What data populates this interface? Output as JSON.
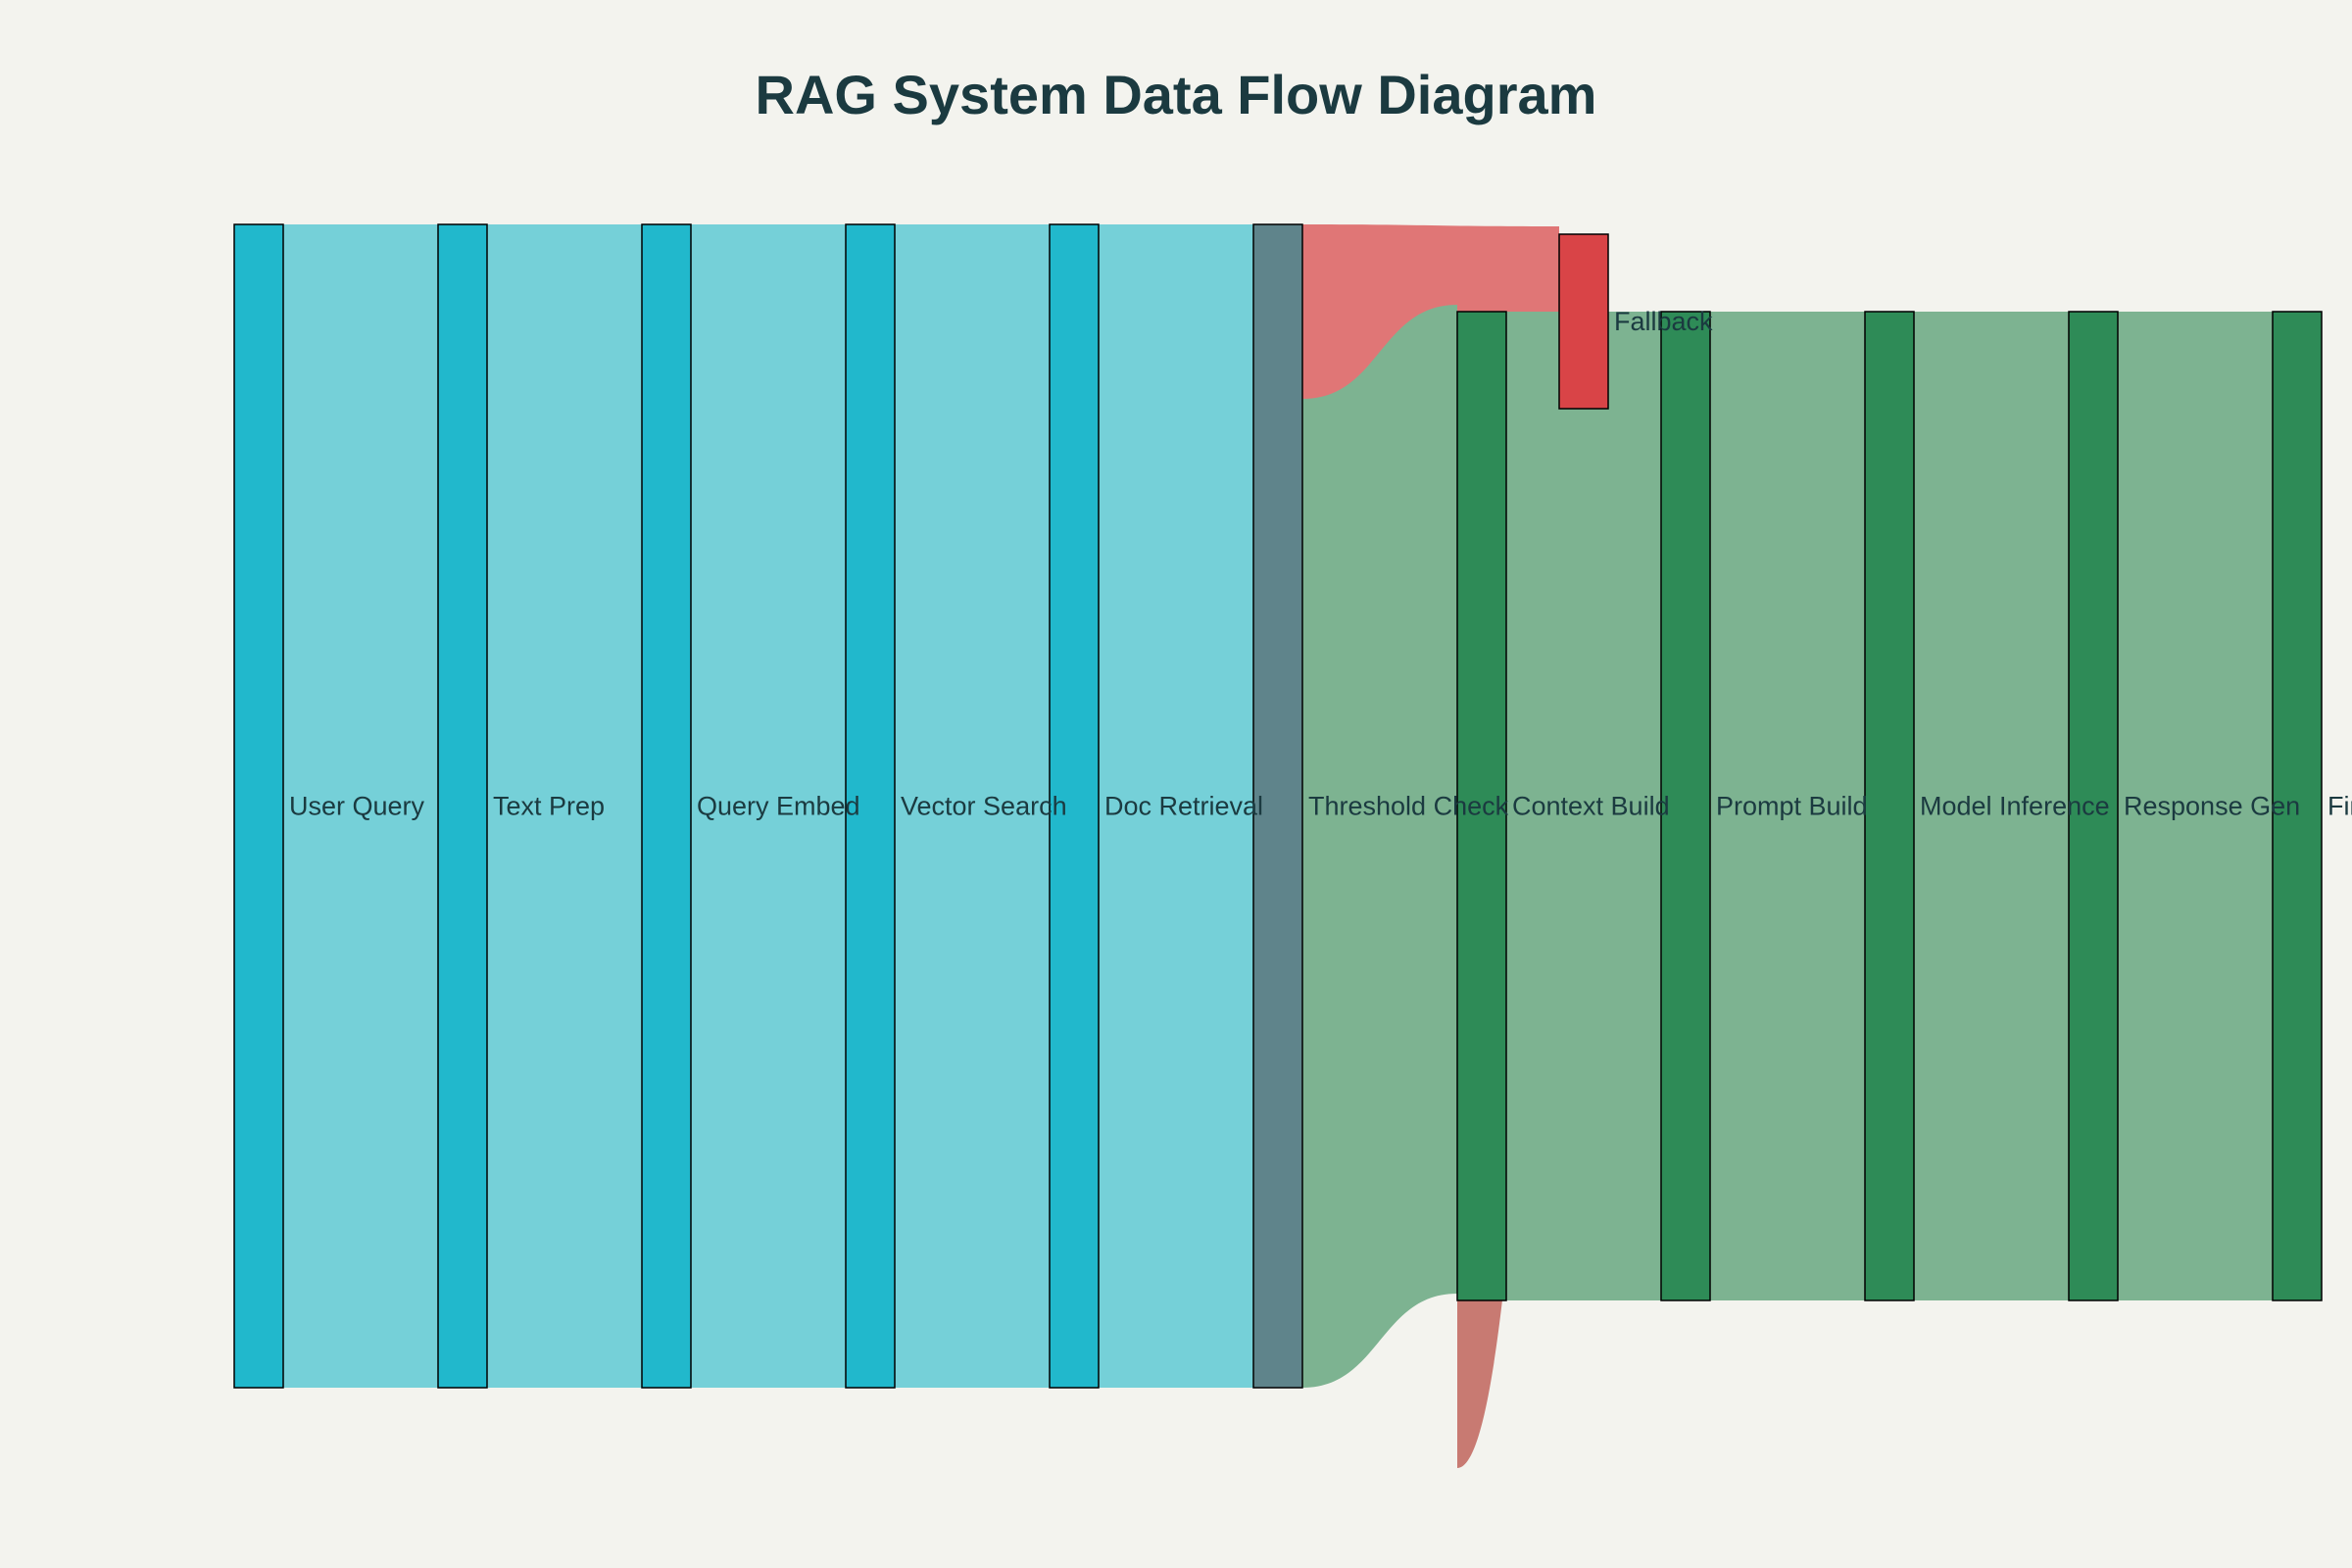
{
  "title": "RAG System Data Flow Diagram",
  "colors": {
    "background": "#f3f3ee",
    "primary_node": "#21b8cc",
    "threshold_node": "#5f848b",
    "success_node": "#2e8b57",
    "fallback_node": "#d94447",
    "primary_link": "#75d0d8",
    "success_link": "#7db391",
    "fallback_link": "#e07676",
    "fallback_return_link": "#c0645c"
  },
  "nodes": [
    {
      "id": "user_query",
      "label": "User Query",
      "color": "primary_node"
    },
    {
      "id": "text_prep",
      "label": "Text Prep",
      "color": "primary_node"
    },
    {
      "id": "query_embed",
      "label": "Query Embed",
      "color": "primary_node"
    },
    {
      "id": "vector_search",
      "label": "Vector Search",
      "color": "primary_node"
    },
    {
      "id": "doc_retrieval",
      "label": "Doc Retrieval",
      "color": "primary_node"
    },
    {
      "id": "threshold_check",
      "label": "Threshold Check",
      "color": "threshold_node"
    },
    {
      "id": "fallback",
      "label": "Fallback",
      "color": "fallback_node"
    },
    {
      "id": "context_build",
      "label": "Context Build",
      "color": "success_node"
    },
    {
      "id": "prompt_build",
      "label": "Prompt Build",
      "color": "success_node"
    },
    {
      "id": "model_infer",
      "label": "Model Inference",
      "color": "success_node"
    },
    {
      "id": "response_gen",
      "label": "Response Gen",
      "color": "success_node"
    },
    {
      "id": "final_output",
      "label": "Final Output",
      "color": "success_node"
    }
  ],
  "links": [
    {
      "source": "user_query",
      "target": "text_prep",
      "value": 100,
      "color": "primary_link"
    },
    {
      "source": "text_prep",
      "target": "query_embed",
      "value": 100,
      "color": "primary_link"
    },
    {
      "source": "query_embed",
      "target": "vector_search",
      "value": 100,
      "color": "primary_link"
    },
    {
      "source": "vector_search",
      "target": "doc_retrieval",
      "value": 100,
      "color": "primary_link"
    },
    {
      "source": "doc_retrieval",
      "target": "threshold_check",
      "value": 100,
      "color": "primary_link"
    },
    {
      "source": "threshold_check",
      "target": "fallback",
      "value": 15,
      "color": "fallback_link"
    },
    {
      "source": "threshold_check",
      "target": "context_build",
      "value": 85,
      "color": "success_link"
    },
    {
      "source": "fallback",
      "target": "context_build",
      "value": 15,
      "color": "fallback_return_link"
    },
    {
      "source": "context_build",
      "target": "prompt_build",
      "value": 85,
      "color": "success_link"
    },
    {
      "source": "prompt_build",
      "target": "model_infer",
      "value": 85,
      "color": "success_link"
    },
    {
      "source": "model_infer",
      "target": "response_gen",
      "value": 85,
      "color": "success_link"
    },
    {
      "source": "response_gen",
      "target": "final_output",
      "value": 85,
      "color": "success_link"
    }
  ]
}
